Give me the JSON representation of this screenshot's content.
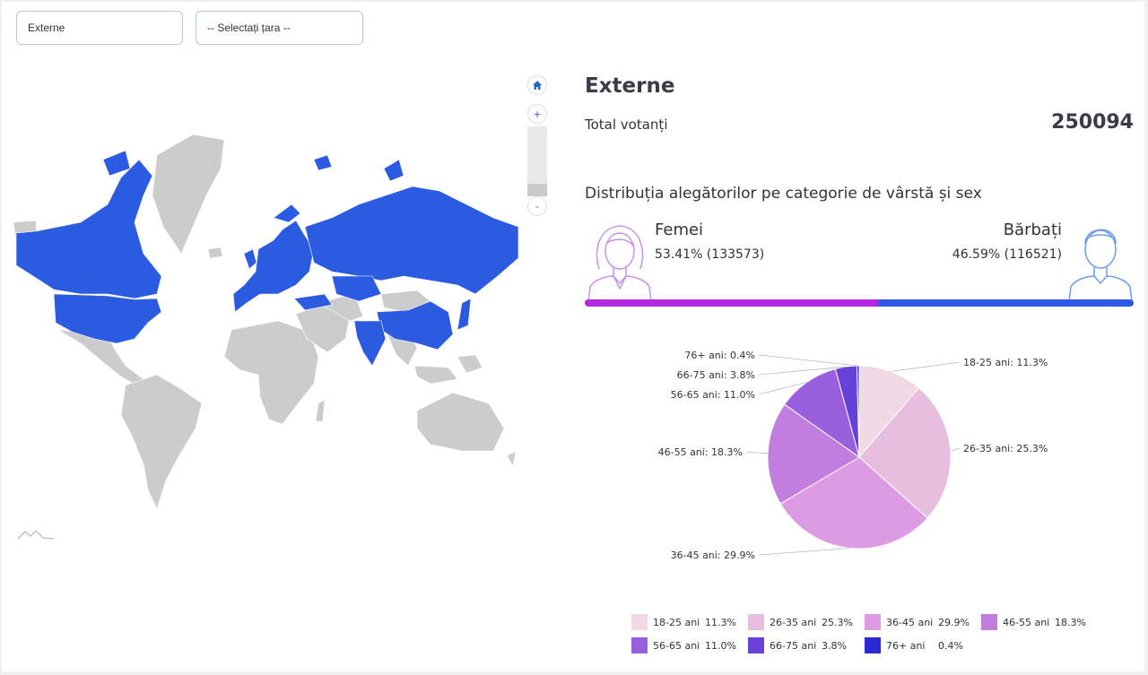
{
  "filters": {
    "region_value": "Externe",
    "country_placeholder": "-- Selectați țara --"
  },
  "map": {
    "highlight_color": "#2b5be0",
    "base_color": "#cccccc",
    "zoom_in": "+",
    "zoom_out": "-"
  },
  "summary": {
    "title": "Externe",
    "total_label": "Total votanți",
    "total_value": "250094",
    "distribution_title": "Distribuția alegătorilor pe categorie de vârstă și sex"
  },
  "gender": {
    "female_label": "Femei",
    "female_value": "53.41% (133573)",
    "female_share": 53.41,
    "male_label": "Bărbați",
    "male_value": "46.59% (116521)",
    "male_share": 46.59,
    "female_color": "#b12ae0",
    "male_color": "#2e59e6"
  },
  "chart_data": {
    "type": "pie",
    "categories": [
      "18-25 ani",
      "26-35 ani",
      "36-45 ani",
      "46-55 ani",
      "56-65 ani",
      "66-75 ani",
      "76+ ani"
    ],
    "values": [
      11.3,
      25.3,
      29.9,
      18.3,
      11.0,
      3.8,
      0.4
    ],
    "labels": [
      "18-25 ani: 11.3%",
      "26-35 ani: 25.3%",
      "36-45 ani: 29.9%",
      "46-55 ani: 18.3%",
      "56-65 ani: 11.0%",
      "66-75 ani: 3.8%",
      "76+ ani: 0.4%"
    ],
    "legend_values": [
      "11.3%",
      "25.3%",
      "29.9%",
      "18.3%",
      "11.0%",
      "3.8%",
      "0.4%"
    ],
    "colors": [
      "#f0d8e4",
      "#e8bede",
      "#dd9be4",
      "#c27ede",
      "#9a5fdc",
      "#6842d8",
      "#2b2ad0"
    ],
    "legend_position": "bottom"
  }
}
